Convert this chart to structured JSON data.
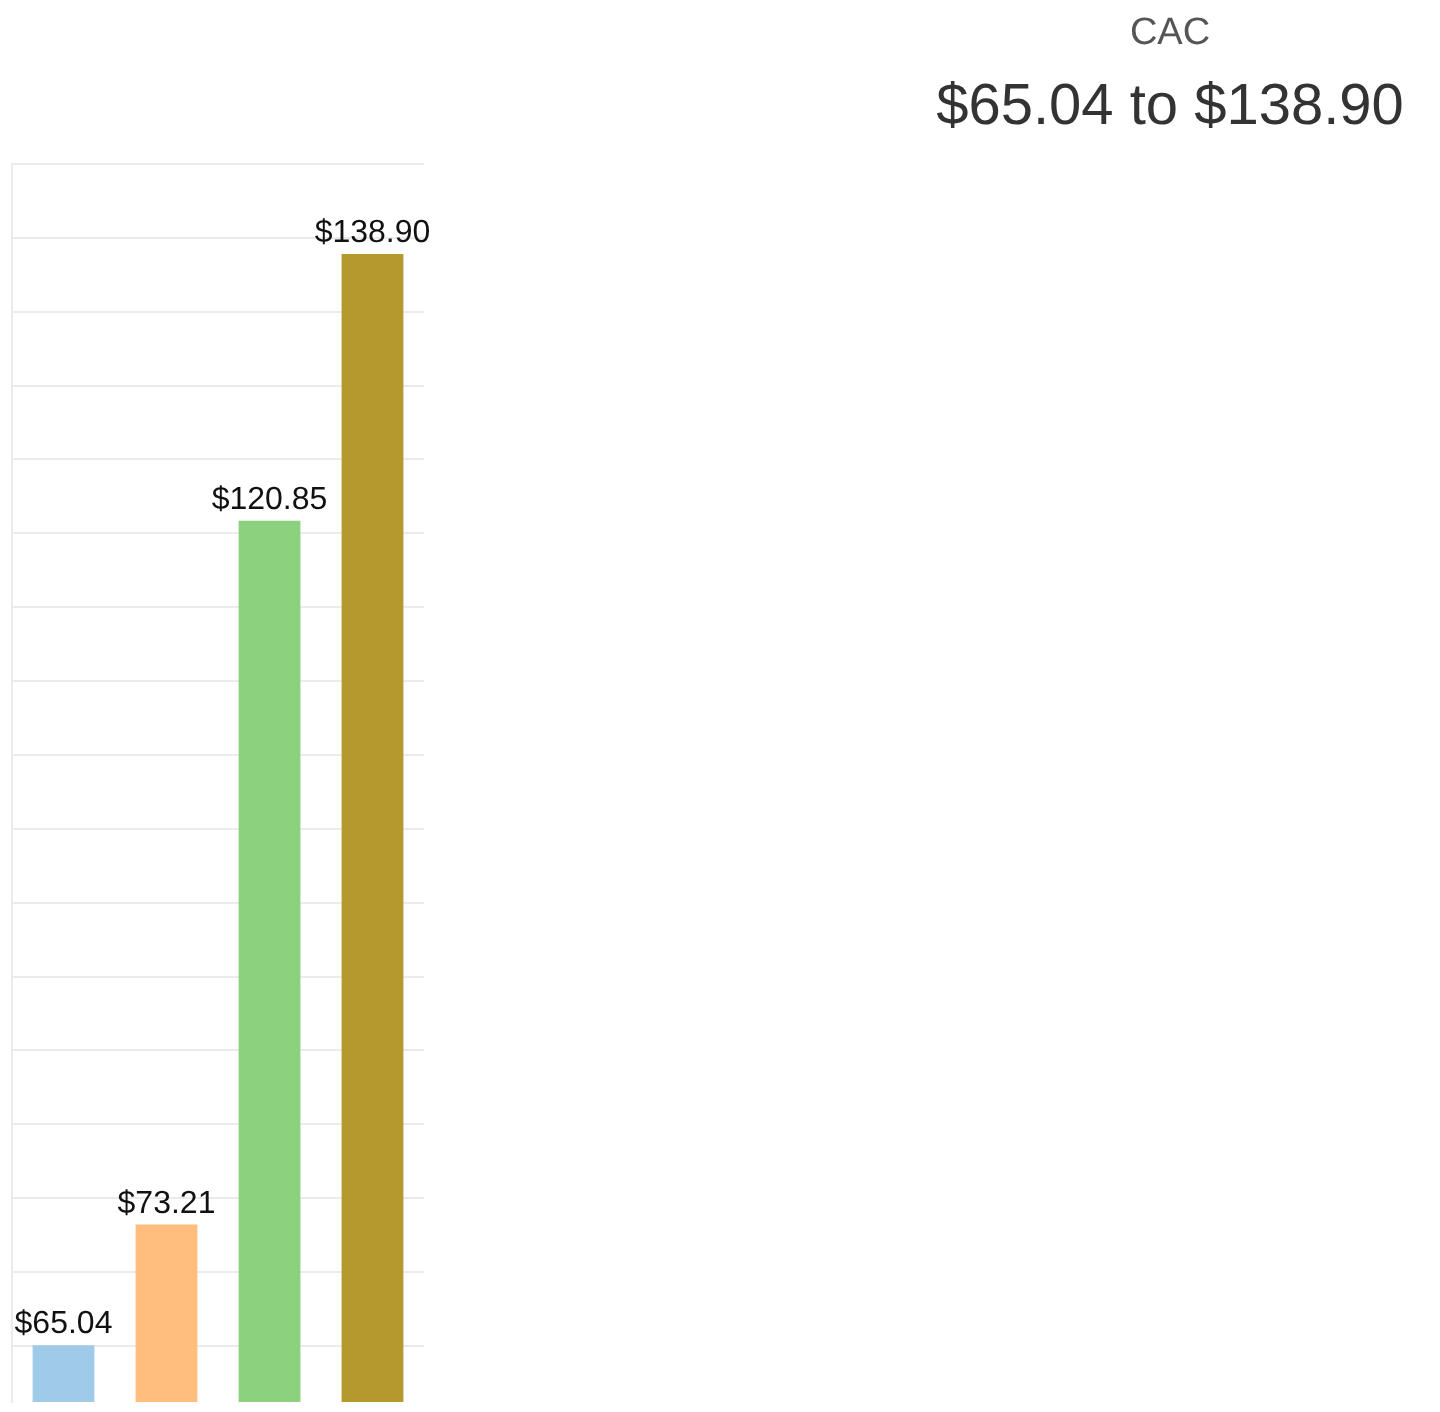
{
  "chart_data": {
    "type": "bar",
    "title": "CAC",
    "subtitle": "$65.04 to $138.90",
    "categories": [
      null,
      null,
      null,
      null
    ],
    "values": [
      65.04,
      73.21,
      120.85,
      138.9
    ],
    "colors": [
      "#a0cbe8",
      "#ffbe7d",
      "#8cd17d",
      "#b6992d"
    ],
    "value_labels": [
      "$65.04",
      "$73.21",
      "$120.85",
      "$138.90"
    ],
    "ylim": [
      61.2,
      145
    ],
    "yticks": [
      {
        "value": 65,
        "label": null
      },
      {
        "value": 70,
        "label": null
      },
      {
        "value": 75,
        "label": null
      },
      {
        "value": 80,
        "label": null
      },
      {
        "value": 85,
        "label": null
      },
      {
        "value": 90,
        "label": null
      },
      {
        "value": 95,
        "label": null
      },
      {
        "value": 100,
        "label": null
      },
      {
        "value": 105,
        "label": null
      },
      {
        "value": 110,
        "label": null
      },
      {
        "value": 115,
        "label": null
      },
      {
        "value": 120,
        "label": null
      },
      {
        "value": 125,
        "label": null
      },
      {
        "value": 130,
        "label": null
      },
      {
        "value": 135,
        "label": null
      },
      {
        "value": 140,
        "label": null
      },
      {
        "value": 145,
        "label": null
      }
    ],
    "tick_labels": false,
    "grid": "y"
  }
}
